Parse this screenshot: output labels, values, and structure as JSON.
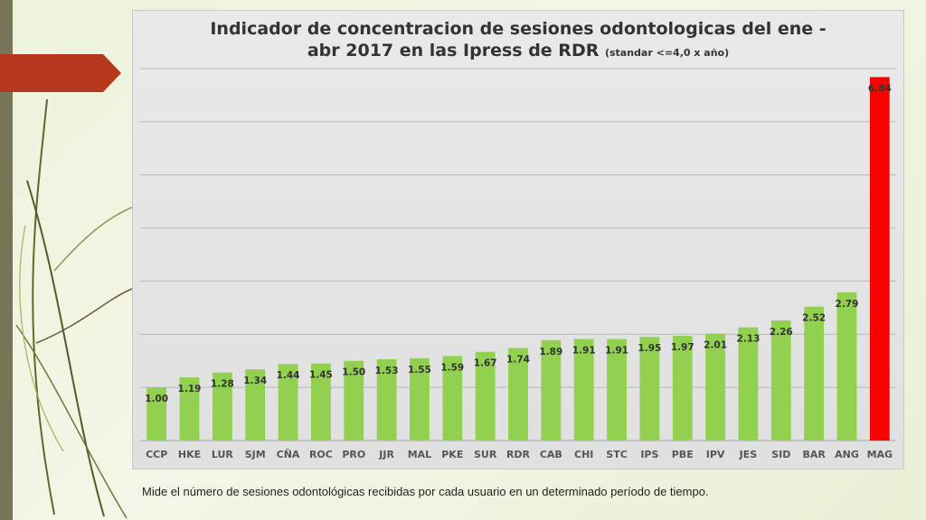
{
  "caption": "Mide el número de sesiones odontológicas recibidas por cada usuario en un determinado período de tiempo.",
  "colors": {
    "normal_bar": "#92d050",
    "highlight_bar": "#ff0000",
    "label": "#333333"
  },
  "chart_data": {
    "type": "bar",
    "title": "Indicador de concentracion de sesiones odontologicas del ene -",
    "title_line2": "abr 2017 en las Ipress de RDR",
    "title_note": "(standar <=4,0 x año)",
    "xlabel": "",
    "ylabel": "",
    "ylim": [
      0,
      7
    ],
    "grid": true,
    "legend": "none",
    "categories": [
      "CCP",
      "HKE",
      "LUR",
      "SJM",
      "CÑA",
      "ROC",
      "PRO",
      "JJR",
      "MAL",
      "PKE",
      "SUR",
      "RDR",
      "CAB",
      "CHI",
      "STC",
      "IPS",
      "PBE",
      "IPV",
      "JES",
      "SID",
      "BAR",
      "ANG",
      "MAG"
    ],
    "values": [
      1.0,
      1.19,
      1.28,
      1.34,
      1.44,
      1.45,
      1.5,
      1.53,
      1.55,
      1.59,
      1.67,
      1.74,
      1.89,
      1.91,
      1.91,
      1.95,
      1.97,
      2.01,
      2.13,
      2.26,
      2.52,
      2.79,
      6.84
    ],
    "value_labels": [
      "1.00",
      "1.19",
      "1.28",
      "1.34",
      "1.44",
      "1.45",
      "1.50",
      "1.53",
      "1.55",
      "1.59",
      "1.67",
      "1.74",
      "1.89",
      "1.91",
      "1.91",
      "1.95",
      "1.97",
      "2.01",
      "2.13",
      "2.26",
      "2.52",
      "2.79",
      "6.84"
    ],
    "highlight": [
      "MAG"
    ]
  }
}
